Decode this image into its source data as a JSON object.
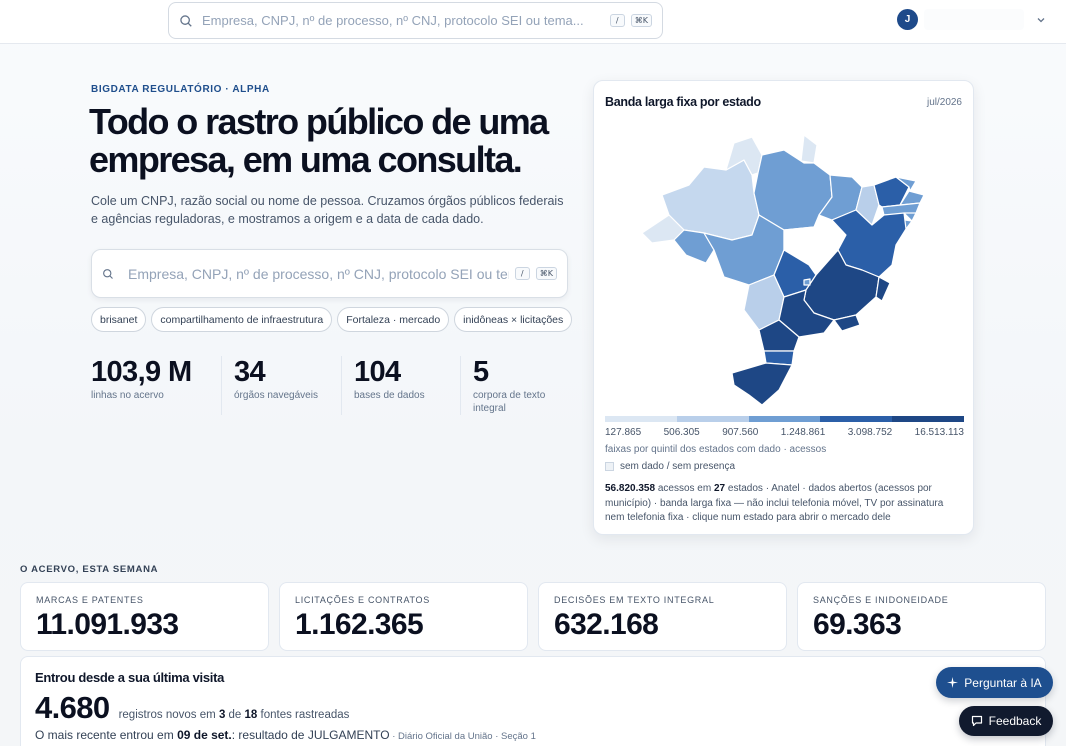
{
  "topbar": {
    "search_placeholder": "Empresa, CNPJ, nº de processo, nº CNJ, protocolo SEI ou tema...",
    "kbd_slash": "/",
    "kbd_cmd": "⌘K",
    "user_initial": "J"
  },
  "hero": {
    "eyebrow": "BIGDATA REGULATÓRIO · ALPHA",
    "title_line1": "Todo o rastro público de uma",
    "title_line2": "empresa, em uma consulta.",
    "subtitle": "Cole um CNPJ, razão social ou nome de pessoa. Cruzamos órgãos públicos federais e agências reguladoras, e mostramos a origem e a data de cada dado.",
    "search_placeholder": "Empresa, CNPJ, nº de processo, nº CNJ, protocolo SEI ou tema...",
    "kbd_slash": "/",
    "kbd_cmd": "⌘K",
    "chips": [
      "brisanet",
      "compartilhamento de infraestrutura",
      "Fortaleza · mercado",
      "inidôneas × licitações"
    ],
    "stats": [
      {
        "value": "103,9 M",
        "label": "linhas no acervo"
      },
      {
        "value": "34",
        "label": "órgãos navegáveis"
      },
      {
        "value": "104",
        "label": "bases de dados"
      },
      {
        "value": "5",
        "label": "corpora de texto integral"
      }
    ]
  },
  "map": {
    "title": "Banda larga fixa por estado",
    "date": "jul/2026",
    "legend_colors": [
      "#dce7f3",
      "#b9cfea",
      "#6f9ed3",
      "#2b5fa8",
      "#1e4785"
    ],
    "legend_ticks": [
      "127.865",
      "506.305",
      "907.560",
      "1.248.861",
      "3.098.752",
      "16.513.113"
    ],
    "legend_note": "faixas por quintil dos estados com dado · acessos",
    "no_data_label": "sem dado / sem presença",
    "foot_total": "56.820.358",
    "foot_text1": " acessos em ",
    "foot_states": "27",
    "foot_text2": " estados · Anatel · dados abertos (acessos por município) · banda larga fixa — não inclui telefonia móvel, TV por assinatura nem telefonia fixa · clique num estado para abrir o mercado dele"
  },
  "acervo": {
    "label": "O ACERVO, ESTA SEMANA",
    "cards": [
      {
        "title": "MARCAS E PATENTES",
        "value": "11.091.933"
      },
      {
        "title": "LICITAÇÕES E CONTRATOS",
        "value": "1.162.365"
      },
      {
        "title": "DECISÕES EM TEXTO INTEGRAL",
        "value": "632.168"
      },
      {
        "title": "SANÇÕES E INIDONEIDADE",
        "value": "69.363"
      }
    ]
  },
  "visit": {
    "title": "Entrou desde a sua última visita",
    "count": "4.680",
    "desc_pre": "registros novos em ",
    "desc_sources": "3",
    "desc_mid": " de ",
    "desc_total": "18",
    "desc_post": " fontes rastreadas",
    "last_pre": "O mais recente entrou em ",
    "last_date": "09 de set.",
    "last_mid": ": resultado de JULGAMENTO",
    "last_src": " · Diário Oficial da União · Seção 1"
  },
  "buttons": {
    "ask_ai": "Perguntar à IA",
    "feedback": "Feedback"
  }
}
